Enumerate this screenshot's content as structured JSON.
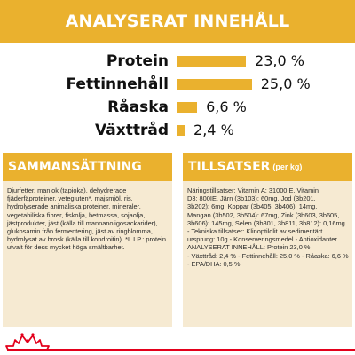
{
  "analysis": {
    "title": "ANALYSERAT INNEHÅLL",
    "rows": [
      {
        "label": "Protein",
        "value": "23,0 %",
        "level": 23.0
      },
      {
        "label": "Fettinnehåll",
        "value": "25,0 %",
        "level": 25.0
      },
      {
        "label": "Råaska",
        "value": "6,6 %",
        "level": 6.6
      },
      {
        "label": "Växttråd",
        "value": "2,4 %",
        "level": 2.4
      }
    ]
  },
  "composition": {
    "title": "SAMMANSÄTTNING",
    "text": "Djurfetter, maniok (tapioka), dehydrerade fjäderfäproteiner, vetegluten*, majsmjöl, ris, hydrolyserade animaliska proteiner, mineraler, vegetabiliska fibrer, fiskolja, betmassa, sojaolja, jästprodukter, jäst (källa till mannanoligosackarider), glukosamin från fermentering, jäst av ringblomma, hydrolysat av brosk (källa till kondroitin). *L.I.P.: protein utvalt för dess mycket höga smältbarhet."
  },
  "additives": {
    "title": "TILLSATSER",
    "subtitle": "(per kg)",
    "lines": [
      "Näringstillsatser: Vitamin A: 31000IE, Vitamin",
      "D3: 800IE, Järn (3b103): 60mg, Jod (3b201,",
      "3b202): 6mg, Koppar (3b405, 3b406): 14mg,",
      "Mangan (3b502, 3b504): 67mg, Zink (3b603, 3b605,",
      "3b606): 145mg, Selen (3b801, 3b811, 3b812): 0,16mg",
      "- Tekniska tillsatser: Klinoptilolit av sedimentärt",
      "ursprung: 10g - Konserveringsmedel - Antioxidanter.",
      "ANALYSERAT INNEHÅLL: Protein 23,0 %",
      "- Växttråd: 2,4 % - Fettinnehåll: 25,0 % - Råaska: 6,6 %",
      "- EPA/DHA: 0,5 %."
    ]
  },
  "colors": {
    "accent": "#eab12e",
    "panel_bg": "#f6ead2",
    "brand_red": "#e3001b"
  },
  "footer": {
    "logo_icon": "royal-canin-crown-logo-icon"
  }
}
